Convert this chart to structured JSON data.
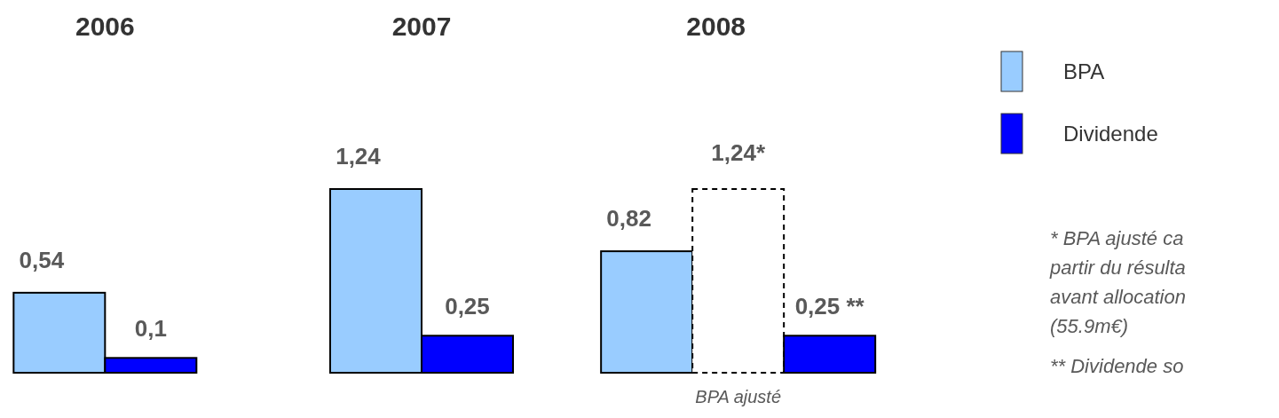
{
  "chart_data": {
    "type": "bar",
    "categories": [
      "2006",
      "2007",
      "2008"
    ],
    "series": [
      {
        "name": "BPA",
        "color": "#99ccff",
        "values": [
          0.54,
          1.24,
          0.82
        ],
        "value_labels": [
          "0,54",
          "1,24",
          "0,82"
        ]
      },
      {
        "name": "BPA ajusté",
        "color": "#ffffff",
        "line_style": "dashed",
        "values": [
          null,
          null,
          1.24
        ],
        "value_labels": [
          null,
          null,
          "1,24*"
        ]
      },
      {
        "name": "Dividende",
        "color": "#0000ff",
        "values": [
          0.1,
          0.25,
          0.25
        ],
        "value_labels": [
          "0,1",
          "0,25",
          "0,25 **"
        ]
      }
    ],
    "legend": "right",
    "annotations": [
      "* BPA ajusté ca\npartir du résulta\navant allocation\n(55.9m€)",
      "** Dividende so"
    ]
  }
}
